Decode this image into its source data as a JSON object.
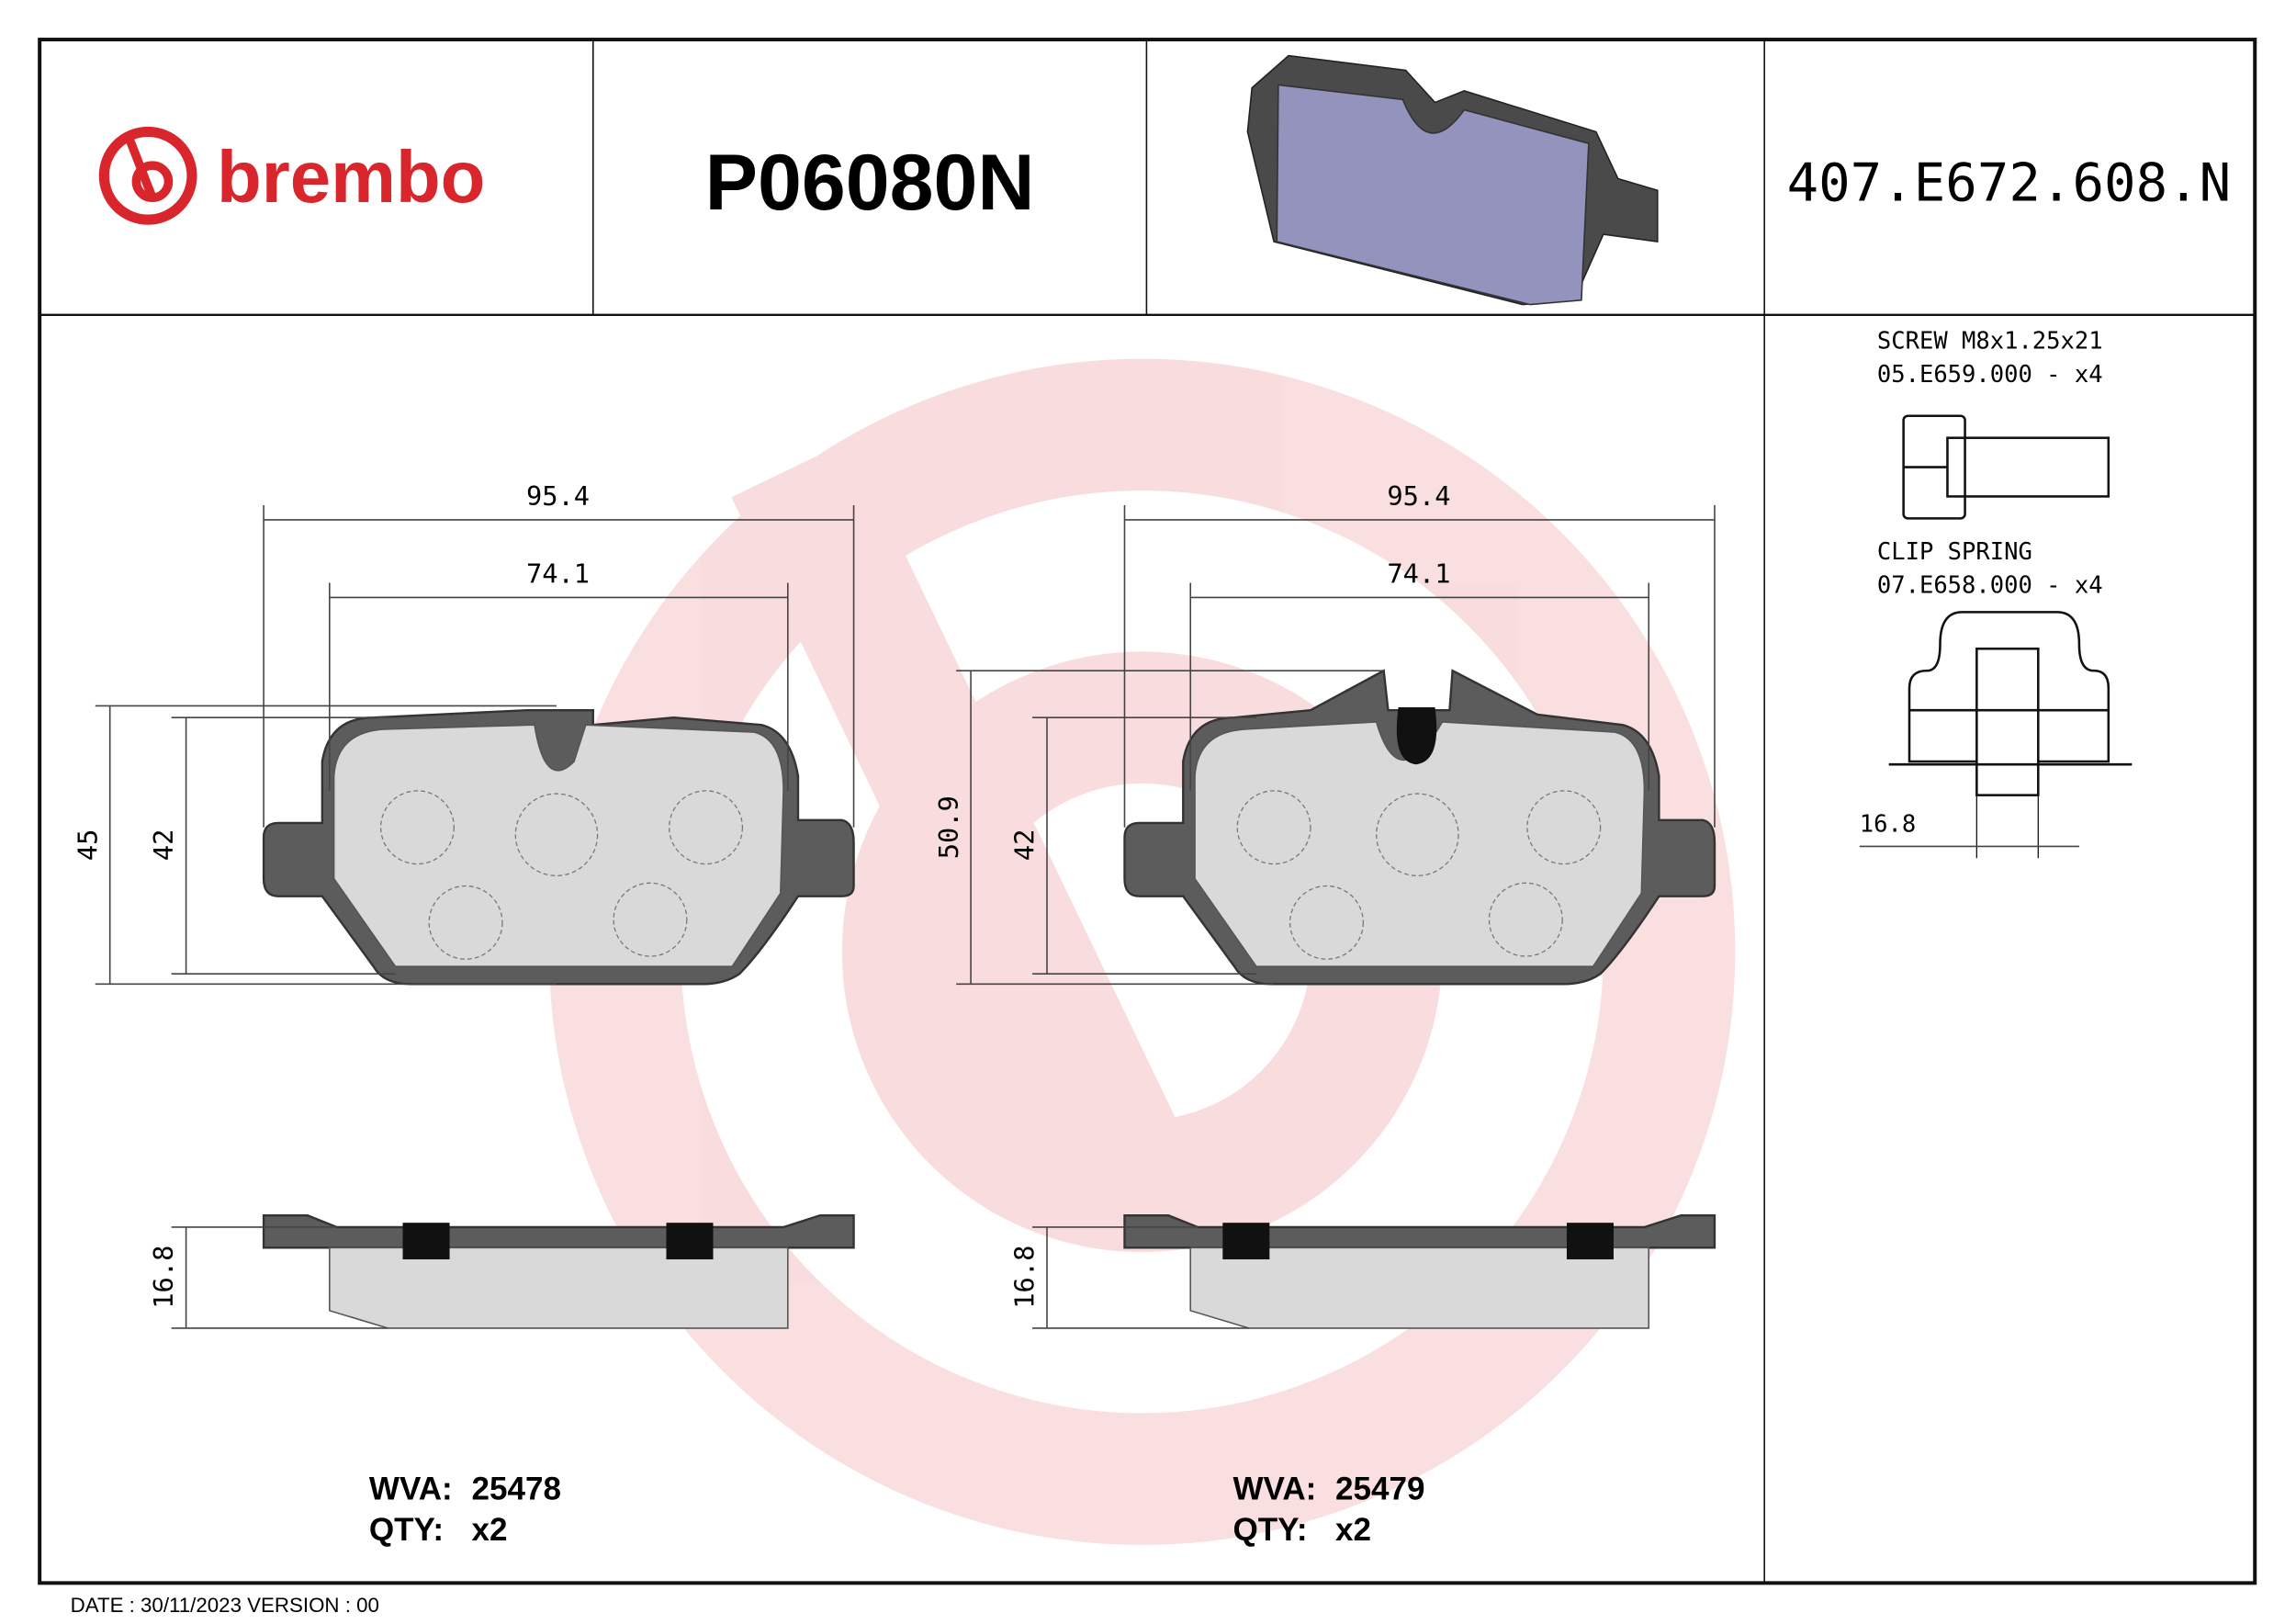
{
  "header": {
    "brand": "brembo",
    "part_number": "P06080N",
    "reference_code": "407.E672.608.N",
    "brand_color": "#d9262c"
  },
  "accessories": {
    "screw": {
      "name": "SCREW M8x1.25x21",
      "code": "05.E659.000 - x4"
    },
    "clip": {
      "name": "CLIP SPRING",
      "code": "07.E658.000 - x4",
      "dimension": "16.8"
    }
  },
  "pads": [
    {
      "width_total": "95.4",
      "width_inner": "74.1",
      "height_total": "45",
      "height_inner": "42",
      "thickness": "16.8",
      "wva_label": "WVA:",
      "wva": "25478",
      "qty_label": "QTY:",
      "qty": "x2"
    },
    {
      "width_total": "95.4",
      "width_inner": "74.1",
      "height_total": "50.9",
      "height_inner": "42",
      "thickness": "16.8",
      "wva_label": "WVA:",
      "wva": "25479",
      "qty_label": "QTY:",
      "qty": "x2"
    }
  ],
  "footer": {
    "text": "DATE : 30/11/2023 VERSION : 00"
  },
  "watermark": "brembo-logo"
}
